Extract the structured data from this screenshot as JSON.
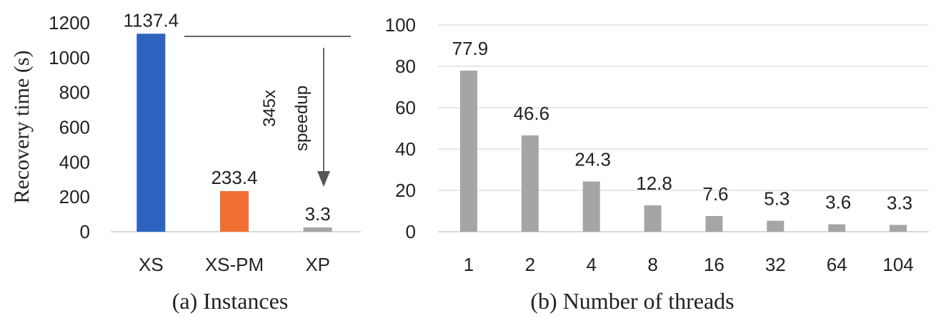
{
  "chart_data": [
    {
      "type": "bar",
      "title": "",
      "caption": "(a) Instances",
      "ylabel": "Recovery time (s)",
      "xlabel": "",
      "ylim": [
        0,
        1200
      ],
      "yticks": [
        0,
        200,
        400,
        600,
        800,
        1000,
        1200
      ],
      "grid": false,
      "categories": [
        "XS",
        "XS-PM",
        "XP"
      ],
      "values": [
        1137.4,
        233.4,
        3.3
      ],
      "data_labels": [
        "1137.4",
        "233.4",
        "3.3"
      ],
      "colors": [
        "#2e62bf",
        "#f07034",
        "#a5a5a5"
      ],
      "annotation": {
        "line1": "345x",
        "line2": "speedup"
      }
    },
    {
      "type": "bar",
      "title": "",
      "caption": "(b) Number of threads",
      "ylabel": "",
      "xlabel": "",
      "ylim": [
        0,
        100
      ],
      "yticks": [
        0,
        20,
        40,
        60,
        80,
        100
      ],
      "grid": true,
      "categories": [
        "1",
        "2",
        "4",
        "8",
        "16",
        "32",
        "64",
        "104"
      ],
      "values": [
        77.9,
        46.6,
        24.3,
        12.8,
        7.6,
        5.3,
        3.6,
        3.3
      ],
      "data_labels": [
        "77.9",
        "46.6",
        "24.3",
        "12.8",
        "7.6",
        "5.3",
        "3.6",
        "3.3"
      ],
      "color": "#a5a5a5"
    }
  ]
}
